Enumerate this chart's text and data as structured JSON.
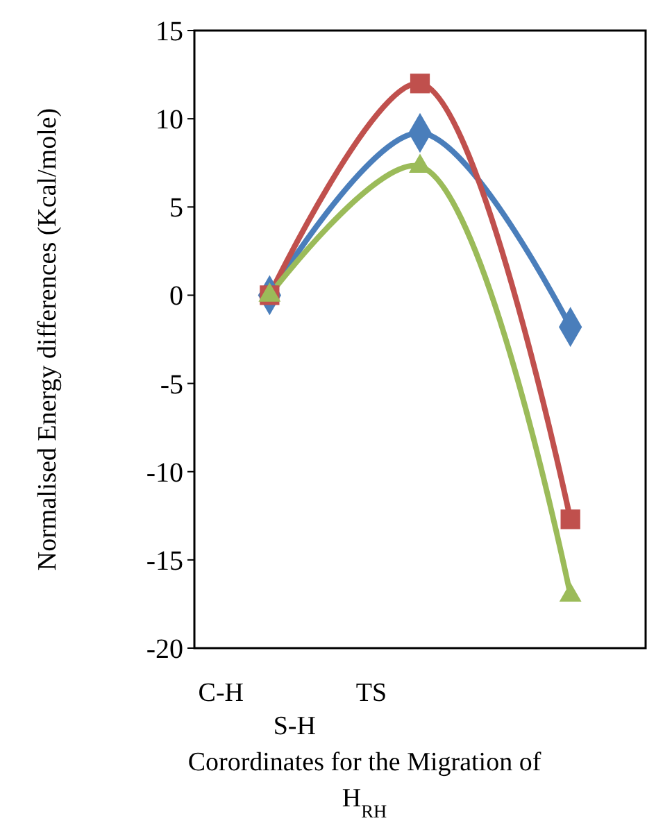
{
  "chart_data": {
    "type": "line",
    "xlabel": "Corordinates for the Migration of H$_{RH}$",
    "ylabel": "Normalised Energy differences (Kcal/mole)",
    "categories": [
      "C-H",
      "TS",
      null
    ],
    "series": [
      {
        "color": "#4a7ebb",
        "marker": "diamond",
        "values": [
          0,
          9.2,
          -1.8
        ]
      },
      {
        "color": "#c0504d",
        "marker": "square",
        "values": [
          0,
          12,
          -12.7
        ]
      },
      {
        "color": "#9bbb59",
        "marker": "triangle",
        "values": [
          0,
          7.3,
          -17
        ]
      }
    ],
    "ylim": [
      -20,
      15
    ],
    "yticks": [
      -20,
      -15,
      -10,
      -5,
      0,
      5,
      10,
      15
    ],
    "grid": false,
    "annotations": [
      "S-H"
    ]
  }
}
